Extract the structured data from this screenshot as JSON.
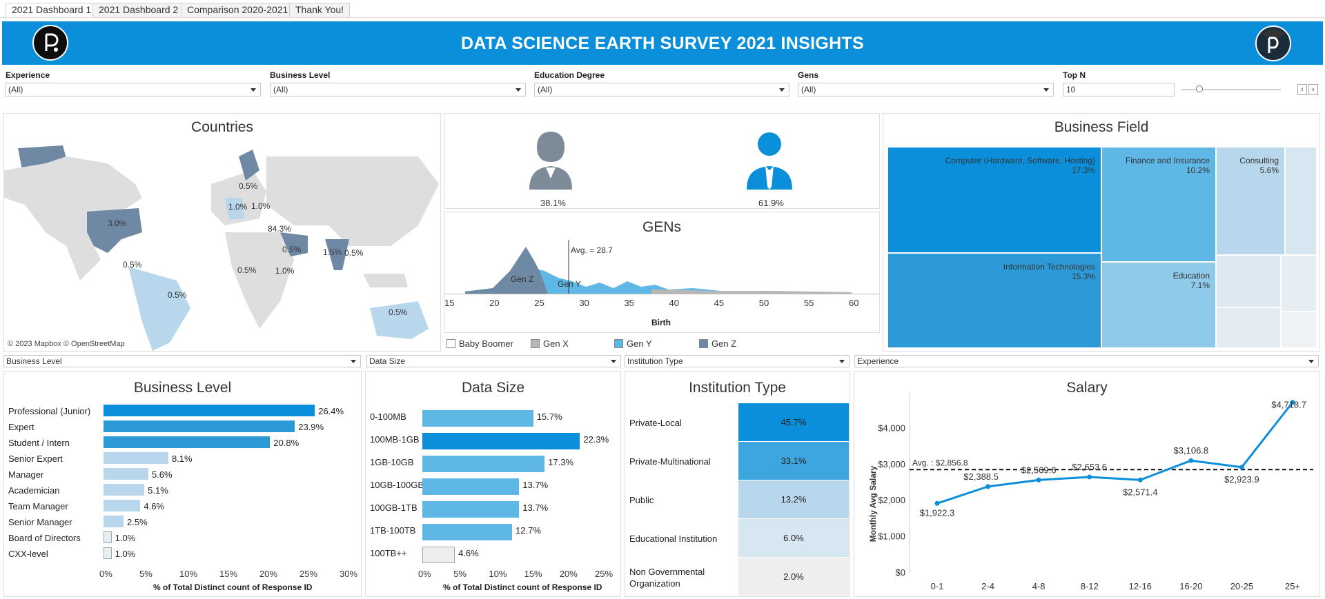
{
  "tabs": [
    {
      "label": "2021 Dashboard 1",
      "active": true
    },
    {
      "label": "2021 Dashboard 2",
      "active": false
    },
    {
      "label": "Comparison 2020-2021",
      "active": false
    },
    {
      "label": "Thank You!",
      "active": false
    }
  ],
  "header": {
    "title": "DATA SCIENCE EARTH SURVEY 2021 INSIGHTS",
    "color": "#0c8fdb"
  },
  "filters": [
    {
      "label": "Experience",
      "value": "(All)"
    },
    {
      "label": "Business Level",
      "value": "(All)"
    },
    {
      "label": "Education Degree",
      "value": "(All)"
    },
    {
      "label": "Gens",
      "value": "(All)"
    }
  ],
  "top_n": {
    "label": "Top N",
    "value": "10"
  },
  "countries": {
    "title": "Countries",
    "credit": "© 2023 Mapbox  © OpenStreetMap",
    "labels": [
      "3.0%",
      "0.5%",
      "1.0%",
      "1.0%",
      "0.5%",
      "84.3%",
      "0.5%",
      "1.5%",
      "0.5%",
      "0.5%",
      "1.0%",
      "0.5%",
      "0.5%",
      "0.5%"
    ]
  },
  "gender": {
    "female": "38.1%",
    "male": "61.9%"
  },
  "gens": {
    "title": "GENs",
    "avg_label": "Avg. = 28.7",
    "xlabel": "Birth",
    "ticks": [
      "15",
      "20",
      "25",
      "30",
      "35",
      "40",
      "45",
      "50",
      "55",
      "60"
    ],
    "area_labels": [
      "Gen Z",
      "Gen Y"
    ],
    "legend": [
      {
        "name": "Baby Boomer",
        "color": "#ffffff"
      },
      {
        "name": "Gen X",
        "color": "#b7b7b7"
      },
      {
        "name": "Gen Y",
        "color": "#5fb7e6"
      },
      {
        "name": "Gen Z",
        "color": "#6f88a4"
      }
    ]
  },
  "business_field": {
    "title": "Business Field",
    "items": [
      {
        "name": "Computer (Hardware, Software, Hosting)",
        "pct": "17.3%"
      },
      {
        "name": "Finance and Insurance",
        "pct": "10.2%"
      },
      {
        "name": "Consulting",
        "pct": "5.6%"
      },
      {
        "name": "Information Technologies",
        "pct": "15.3%"
      },
      {
        "name": "Education",
        "pct": "7.1%"
      }
    ]
  },
  "selectors": [
    "Business Level",
    "Data Size",
    "Institution Type",
    "Experience"
  ],
  "chart_data": [
    {
      "type": "bar",
      "title": "Business Level",
      "xlabel": "% of Total Distinct count of Response ID",
      "categories": [
        "Professional (Junior)",
        "Expert",
        "Student / Intern",
        "Senior Expert",
        "Manager",
        "Academician",
        "Team Manager",
        "Senior Manager",
        "Board of Directors",
        "CXX-level"
      ],
      "values": [
        26.4,
        23.9,
        20.8,
        8.1,
        5.6,
        5.1,
        4.6,
        2.5,
        1.0,
        1.0
      ],
      "value_labels": [
        "26.4%",
        "23.9%",
        "20.8%",
        "8.1%",
        "5.6%",
        "5.1%",
        "4.6%",
        "2.5%",
        "1.0%",
        "1.0%"
      ],
      "ticks": [
        "0%",
        "5%",
        "10%",
        "15%",
        "20%",
        "25%",
        "30%"
      ],
      "xlim": [
        0,
        30
      ]
    },
    {
      "type": "bar",
      "title": "Data Size",
      "xlabel": "% of Total Distinct count of Response ID",
      "categories": [
        "0-100MB",
        "100MB-1GB",
        "1GB-10GB",
        "10GB-100GB",
        "100GB-1TB",
        "1TB-100TB",
        "100TB++"
      ],
      "values": [
        15.7,
        22.3,
        17.3,
        13.7,
        13.7,
        12.7,
        4.6
      ],
      "value_labels": [
        "15.7%",
        "22.3%",
        "17.3%",
        "13.7%",
        "13.7%",
        "12.7%",
        "4.6%"
      ],
      "ticks": [
        "0%",
        "5%",
        "10%",
        "15%",
        "20%",
        "25%"
      ],
      "xlim": [
        0,
        25
      ]
    },
    {
      "type": "table",
      "title": "Institution Type",
      "categories": [
        "Private-Local",
        "Private-Multinational",
        "Public",
        "Educational Institution",
        "Non Governmental Organization"
      ],
      "values": [
        45.7,
        33.1,
        13.2,
        6.0,
        2.0
      ],
      "value_labels": [
        "45.7%",
        "33.1%",
        "13.2%",
        "6.0%",
        "2.0%"
      ]
    },
    {
      "type": "line",
      "title": "Salary",
      "ylabel": "Monthly Avg Salary",
      "categories": [
        "0-1",
        "2-4",
        "4-8",
        "8-12",
        "12-16",
        "16-20",
        "20-25",
        "25+"
      ],
      "values": [
        1922.3,
        2388.5,
        2569.6,
        2653.6,
        2571.4,
        3106.8,
        2923.9,
        4718.7
      ],
      "value_labels": [
        "$1,922.3",
        "$2,388.5",
        "$2,569.6",
        "$2,653.6",
        "$2,571.4",
        "$3,106.8",
        "$2,923.9",
        "$4,718.7"
      ],
      "avg": 2856.8,
      "avg_label": "Avg. : $2,856.8",
      "yticks": [
        "$0",
        "$1,000",
        "$2,000",
        "$3,000",
        "$4,000"
      ],
      "ylim": [
        0,
        5000
      ]
    }
  ]
}
